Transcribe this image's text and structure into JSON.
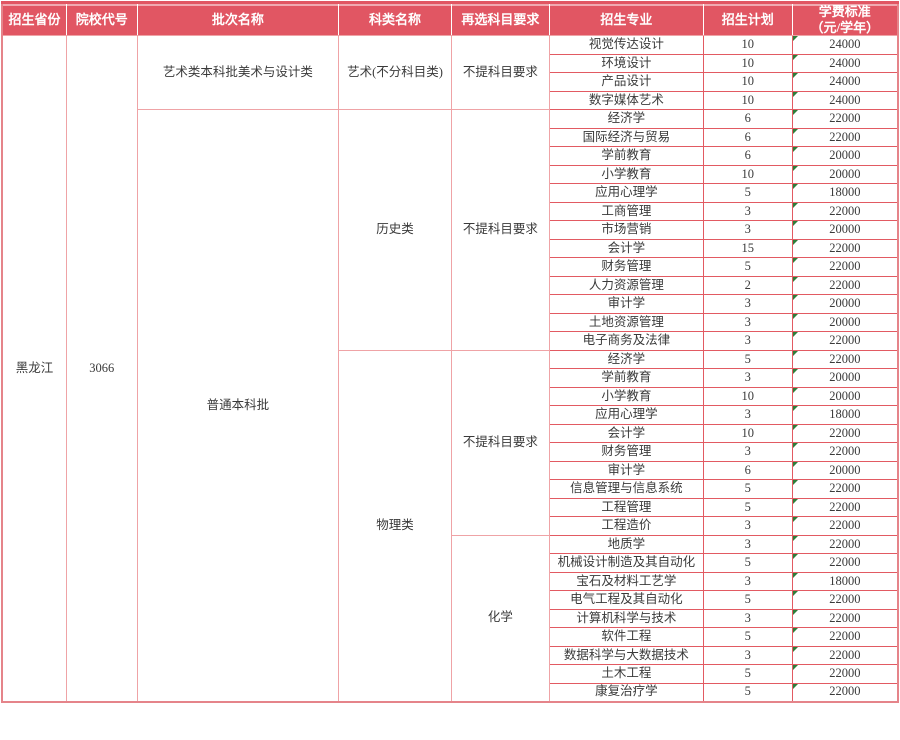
{
  "colors": {
    "header_bg": "#e15663",
    "header_text": "#ffffff",
    "grid_light": "#efa3a6",
    "grid_red": "#e25a62",
    "marker_green": "#2e7d3a",
    "text": "#3a3a3a"
  },
  "table": {
    "headers": [
      "招生省份",
      "院校代号",
      "批次名称",
      "科类名称",
      "再选科目要求",
      "招生专业",
      "招生计划",
      "学费标准\n（元/学年）"
    ],
    "province": "黑龙江",
    "college_code": "3066",
    "batches": [
      {
        "name": "艺术类本科批美术与设计类",
        "span": 4
      },
      {
        "name": "普通本科批",
        "span": 32
      }
    ],
    "categories": [
      {
        "name": "艺术(不分科目类)",
        "span": 4
      },
      {
        "name": "历史类",
        "span": 13
      },
      {
        "name": "物理类",
        "span": 19
      }
    ],
    "requirements": [
      {
        "name": "不提科目要求",
        "span": 4
      },
      {
        "name": "不提科目要求",
        "span": 13
      },
      {
        "name": "不提科目要求",
        "span": 10
      },
      {
        "name": "化学",
        "span": 9
      }
    ],
    "rows": [
      {
        "major": "视觉传达设计",
        "plan": "10",
        "tuition": "24000"
      },
      {
        "major": "环境设计",
        "plan": "10",
        "tuition": "24000"
      },
      {
        "major": "产品设计",
        "plan": "10",
        "tuition": "24000"
      },
      {
        "major": "数字媒体艺术",
        "plan": "10",
        "tuition": "24000"
      },
      {
        "major": "经济学",
        "plan": "6",
        "tuition": "22000"
      },
      {
        "major": "国际经济与贸易",
        "plan": "6",
        "tuition": "22000"
      },
      {
        "major": "学前教育",
        "plan": "6",
        "tuition": "20000"
      },
      {
        "major": "小学教育",
        "plan": "10",
        "tuition": "20000"
      },
      {
        "major": "应用心理学",
        "plan": "5",
        "tuition": "18000"
      },
      {
        "major": "工商管理",
        "plan": "3",
        "tuition": "22000"
      },
      {
        "major": "市场营销",
        "plan": "3",
        "tuition": "20000"
      },
      {
        "major": "会计学",
        "plan": "15",
        "tuition": "22000"
      },
      {
        "major": "财务管理",
        "plan": "5",
        "tuition": "22000"
      },
      {
        "major": "人力资源管理",
        "plan": "2",
        "tuition": "22000"
      },
      {
        "major": "审计学",
        "plan": "3",
        "tuition": "20000"
      },
      {
        "major": "土地资源管理",
        "plan": "3",
        "tuition": "20000"
      },
      {
        "major": "电子商务及法律",
        "plan": "3",
        "tuition": "22000"
      },
      {
        "major": "经济学",
        "plan": "5",
        "tuition": "22000"
      },
      {
        "major": "学前教育",
        "plan": "3",
        "tuition": "20000"
      },
      {
        "major": "小学教育",
        "plan": "10",
        "tuition": "20000"
      },
      {
        "major": "应用心理学",
        "plan": "3",
        "tuition": "18000"
      },
      {
        "major": "会计学",
        "plan": "10",
        "tuition": "22000"
      },
      {
        "major": "财务管理",
        "plan": "3",
        "tuition": "22000"
      },
      {
        "major": "审计学",
        "plan": "6",
        "tuition": "20000"
      },
      {
        "major": "信息管理与信息系统",
        "plan": "5",
        "tuition": "22000"
      },
      {
        "major": "工程管理",
        "plan": "5",
        "tuition": "22000"
      },
      {
        "major": "工程造价",
        "plan": "3",
        "tuition": "22000"
      },
      {
        "major": "地质学",
        "plan": "3",
        "tuition": "22000"
      },
      {
        "major": "机械设计制造及其自动化",
        "plan": "5",
        "tuition": "22000"
      },
      {
        "major": "宝石及材料工艺学",
        "plan": "3",
        "tuition": "18000"
      },
      {
        "major": "电气工程及其自动化",
        "plan": "5",
        "tuition": "22000"
      },
      {
        "major": "计算机科学与技术",
        "plan": "3",
        "tuition": "22000"
      },
      {
        "major": "软件工程",
        "plan": "5",
        "tuition": "22000"
      },
      {
        "major": "数据科学与大数据技术",
        "plan": "3",
        "tuition": "22000"
      },
      {
        "major": "土木工程",
        "plan": "5",
        "tuition": "22000"
      },
      {
        "major": "康复治疗学",
        "plan": "5",
        "tuition": "22000"
      }
    ]
  }
}
